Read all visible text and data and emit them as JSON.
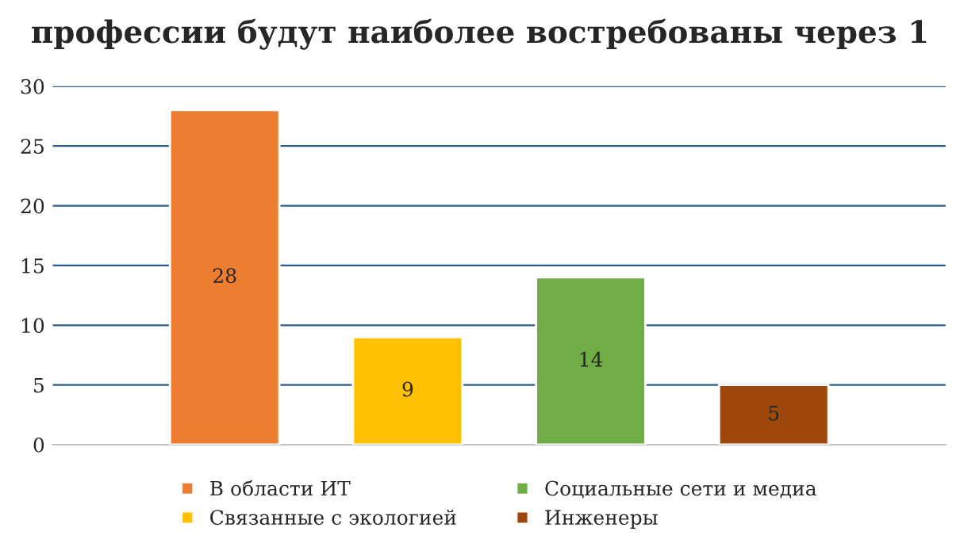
{
  "chart_data": {
    "type": "bar",
    "title": "профессии будут наиболее востребованы через 1",
    "categories": [
      null
    ],
    "series": [
      {
        "name": "В области ИТ",
        "color": "#ed7d31",
        "values": [
          28
        ]
      },
      {
        "name": "Связанные с экологией",
        "color": "#ffc000",
        "values": [
          9
        ]
      },
      {
        "name": "Социальные сети и медиа",
        "color": "#70ad47",
        "values": [
          14
        ]
      },
      {
        "name": "Инженеры",
        "color": "#9e480e",
        "values": [
          5
        ]
      }
    ],
    "ylim": [
      0,
      30
    ],
    "yticks": [
      0,
      5,
      10,
      15,
      20,
      25,
      30
    ],
    "grid": "y",
    "legend": "bottom",
    "data_labels": true
  }
}
